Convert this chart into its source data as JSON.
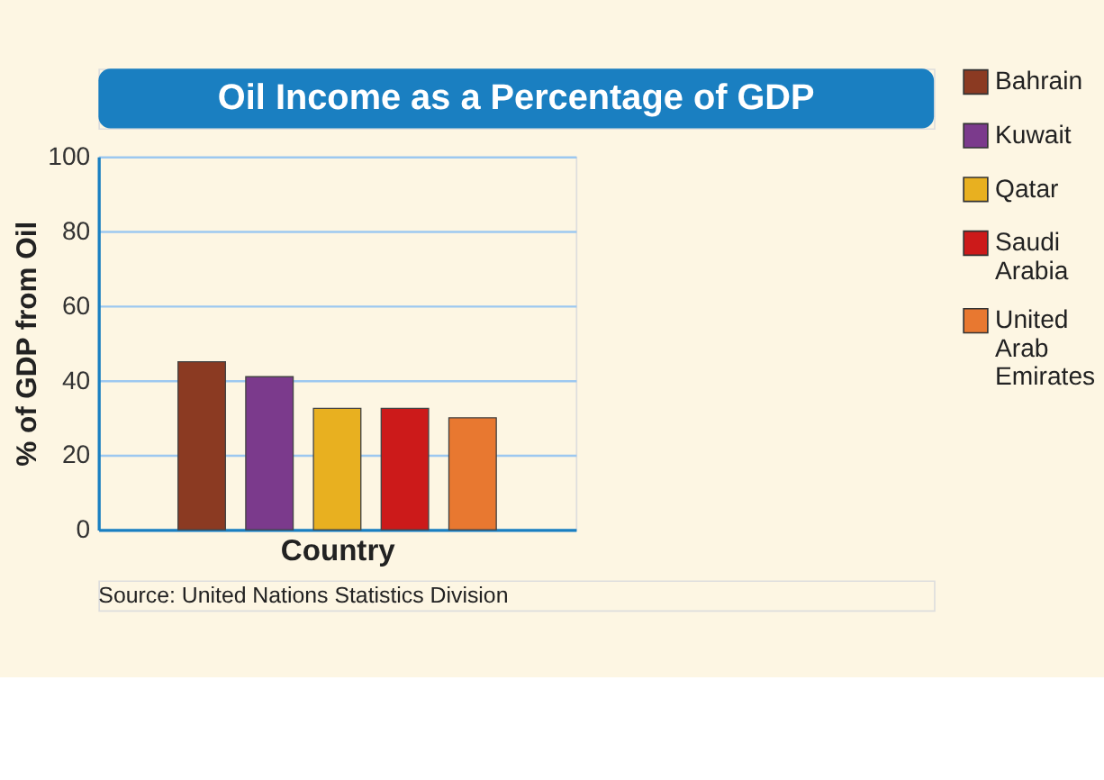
{
  "chart_data": {
    "type": "bar",
    "title": "Oil Income as a Percentage of GDP",
    "xlabel": "Country",
    "ylabel": "% of GDP from Oil",
    "categories": [
      null
    ],
    "series": [
      {
        "name": "Bahrain",
        "color": "#8b3a22",
        "values": [
          45
        ]
      },
      {
        "name": "Kuwait",
        "color": "#7b3a8c",
        "values": [
          41
        ]
      },
      {
        "name": "Qatar",
        "color": "#e8b020",
        "values": [
          32.5
        ]
      },
      {
        "name": "Saudi Arabia",
        "color": "#cc1a1a",
        "values": [
          32.5
        ]
      },
      {
        "name": "United Arab Emirates",
        "color": "#e87830",
        "values": [
          30
        ]
      }
    ],
    "ylim": [
      0,
      100
    ],
    "yticks": [
      0,
      20,
      40,
      60,
      80,
      100
    ],
    "grid": "y",
    "legend": "right",
    "tick_labels": "y",
    "annotations": [
      "Source: United Nations Statistics Division"
    ]
  }
}
